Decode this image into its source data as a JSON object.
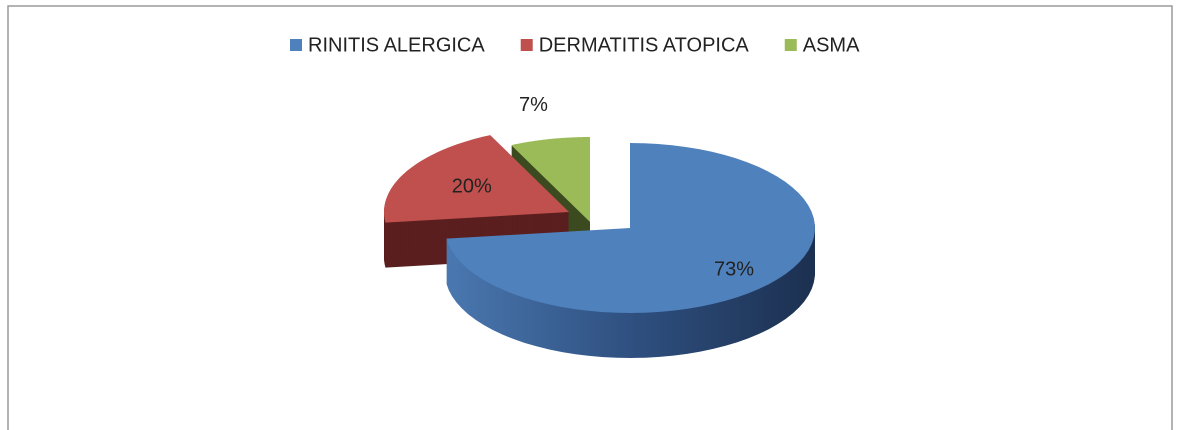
{
  "chart_data": {
    "type": "pie",
    "categories": [
      "RINITIS ALERGICA",
      "DERMATITIS ATOPICA",
      "ASMA"
    ],
    "values": [
      73,
      20,
      7
    ],
    "value_labels": [
      "73%",
      "20%",
      "7%"
    ],
    "colors": [
      "#4f81bd",
      "#c0504d",
      "#9bbb59"
    ],
    "legend": "top"
  }
}
